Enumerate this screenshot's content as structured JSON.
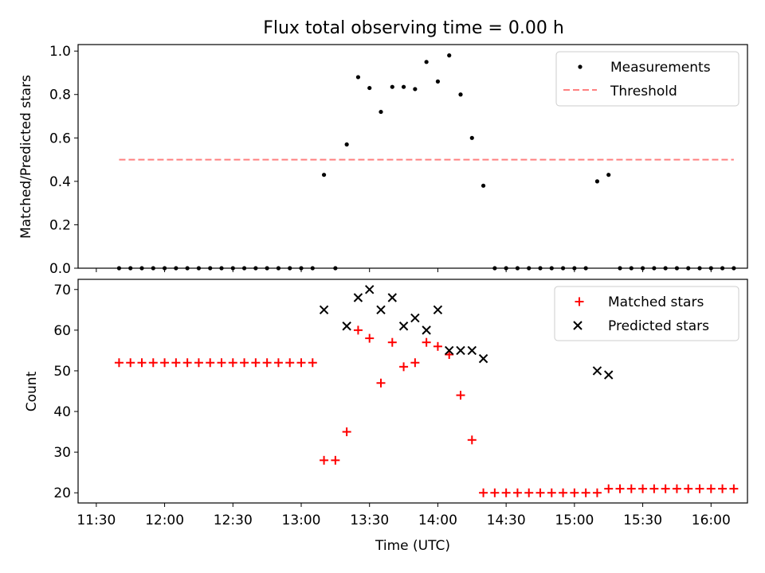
{
  "chart_data": [
    {
      "type": "scatter",
      "title": "Flux total observing time = 0.00 h",
      "xlabel": "",
      "ylabel": "Matched/Predicted stars",
      "ylim": [
        0,
        1.03
      ],
      "xlim_minutes_after_11_00": [
        22,
        316
      ],
      "yticks": [
        "0.0",
        "0.2",
        "0.4",
        "0.6",
        "0.8",
        "1.0"
      ],
      "legend_position": "top-right",
      "series": [
        {
          "name": "Measurements",
          "color": "#000000",
          "marker": "dot",
          "points": [
            [
              "11:40",
              0
            ],
            [
              "11:45",
              0
            ],
            [
              "11:50",
              0
            ],
            [
              "11:55",
              0
            ],
            [
              "12:00",
              0
            ],
            [
              "12:05",
              0
            ],
            [
              "12:10",
              0
            ],
            [
              "12:15",
              0
            ],
            [
              "12:20",
              0
            ],
            [
              "12:25",
              0
            ],
            [
              "12:30",
              0
            ],
            [
              "12:35",
              0
            ],
            [
              "12:40",
              0
            ],
            [
              "12:45",
              0
            ],
            [
              "12:50",
              0
            ],
            [
              "12:55",
              0
            ],
            [
              "13:00",
              0
            ],
            [
              "13:05",
              0
            ],
            [
              "13:10",
              0.43
            ],
            [
              "13:15",
              0
            ],
            [
              "13:20",
              0.57
            ],
            [
              "13:25",
              0.88
            ],
            [
              "13:30",
              0.83
            ],
            [
              "13:35",
              0.72
            ],
            [
              "13:40",
              0.835
            ],
            [
              "13:45",
              0.835
            ],
            [
              "13:50",
              0.825
            ],
            [
              "13:55",
              0.95
            ],
            [
              "14:00",
              0.86
            ],
            [
              "14:05",
              0.98
            ],
            [
              "14:10",
              0.8
            ],
            [
              "14:15",
              0.6
            ],
            [
              "14:20",
              0.38
            ],
            [
              "14:25",
              0
            ],
            [
              "14:30",
              0
            ],
            [
              "14:35",
              0
            ],
            [
              "14:40",
              0
            ],
            [
              "14:45",
              0
            ],
            [
              "14:50",
              0
            ],
            [
              "14:55",
              0
            ],
            [
              "15:00",
              0
            ],
            [
              "15:05",
              0
            ],
            [
              "15:10",
              0.4
            ],
            [
              "15:15",
              0.43
            ],
            [
              "15:20",
              0
            ],
            [
              "15:25",
              0
            ],
            [
              "15:30",
              0
            ],
            [
              "15:35",
              0
            ],
            [
              "15:40",
              0
            ],
            [
              "15:45",
              0
            ],
            [
              "15:50",
              0
            ],
            [
              "15:55",
              0
            ],
            [
              "16:00",
              0
            ],
            [
              "16:05",
              0
            ],
            [
              "16:10",
              0
            ]
          ]
        },
        {
          "name": "Threshold",
          "color": "#ff8080",
          "linestyle": "dashed",
          "x": [
            "11:40",
            "16:10"
          ],
          "y": [
            0.5,
            0.5
          ]
        }
      ]
    },
    {
      "type": "scatter",
      "title": "",
      "xlabel": "Time (UTC)",
      "ylabel": "Count",
      "ylim": [
        17.5,
        72.5
      ],
      "xlim_minutes_after_11_00": [
        22,
        316
      ],
      "yticks": [
        "20",
        "30",
        "40",
        "50",
        "60",
        "70"
      ],
      "xticks": [
        "11:30",
        "12:00",
        "12:30",
        "13:00",
        "13:30",
        "14:00",
        "14:30",
        "15:00",
        "15:30",
        "16:00"
      ],
      "legend_position": "top-right",
      "series": [
        {
          "name": "Matched stars",
          "color": "#ff0000",
          "marker": "plus",
          "points": [
            [
              "11:40",
              52
            ],
            [
              "11:45",
              52
            ],
            [
              "11:50",
              52
            ],
            [
              "11:55",
              52
            ],
            [
              "12:00",
              52
            ],
            [
              "12:05",
              52
            ],
            [
              "12:10",
              52
            ],
            [
              "12:15",
              52
            ],
            [
              "12:20",
              52
            ],
            [
              "12:25",
              52
            ],
            [
              "12:30",
              52
            ],
            [
              "12:35",
              52
            ],
            [
              "12:40",
              52
            ],
            [
              "12:45",
              52
            ],
            [
              "12:50",
              52
            ],
            [
              "12:55",
              52
            ],
            [
              "13:00",
              52
            ],
            [
              "13:05",
              52
            ],
            [
              "13:10",
              28
            ],
            [
              "13:15",
              28
            ],
            [
              "13:20",
              35
            ],
            [
              "13:25",
              60
            ],
            [
              "13:30",
              58
            ],
            [
              "13:35",
              47
            ],
            [
              "13:40",
              57
            ],
            [
              "13:45",
              51
            ],
            [
              "13:50",
              52
            ],
            [
              "13:55",
              57
            ],
            [
              "14:00",
              56
            ],
            [
              "14:05",
              54
            ],
            [
              "14:10",
              44
            ],
            [
              "14:15",
              33
            ],
            [
              "14:20",
              20
            ],
            [
              "14:25",
              20
            ],
            [
              "14:30",
              20
            ],
            [
              "14:35",
              20
            ],
            [
              "14:40",
              20
            ],
            [
              "14:45",
              20
            ],
            [
              "14:50",
              20
            ],
            [
              "14:55",
              20
            ],
            [
              "15:00",
              20
            ],
            [
              "15:05",
              20
            ],
            [
              "15:10",
              20
            ],
            [
              "15:15",
              21
            ],
            [
              "15:20",
              21
            ],
            [
              "15:25",
              21
            ],
            [
              "15:30",
              21
            ],
            [
              "15:35",
              21
            ],
            [
              "15:40",
              21
            ],
            [
              "15:45",
              21
            ],
            [
              "15:50",
              21
            ],
            [
              "15:55",
              21
            ],
            [
              "16:00",
              21
            ],
            [
              "16:05",
              21
            ],
            [
              "16:10",
              21
            ]
          ]
        },
        {
          "name": "Predicted stars",
          "color": "#000000",
          "marker": "x",
          "points": [
            [
              "13:10",
              65
            ],
            [
              "13:20",
              61
            ],
            [
              "13:25",
              68
            ],
            [
              "13:30",
              70
            ],
            [
              "13:35",
              65
            ],
            [
              "13:40",
              68
            ],
            [
              "13:45",
              61
            ],
            [
              "13:50",
              63
            ],
            [
              "13:55",
              60
            ],
            [
              "14:00",
              65
            ],
            [
              "14:05",
              55
            ],
            [
              "14:10",
              55
            ],
            [
              "14:15",
              55
            ],
            [
              "14:20",
              53
            ],
            [
              "15:10",
              50
            ],
            [
              "15:15",
              49
            ]
          ]
        }
      ]
    }
  ]
}
